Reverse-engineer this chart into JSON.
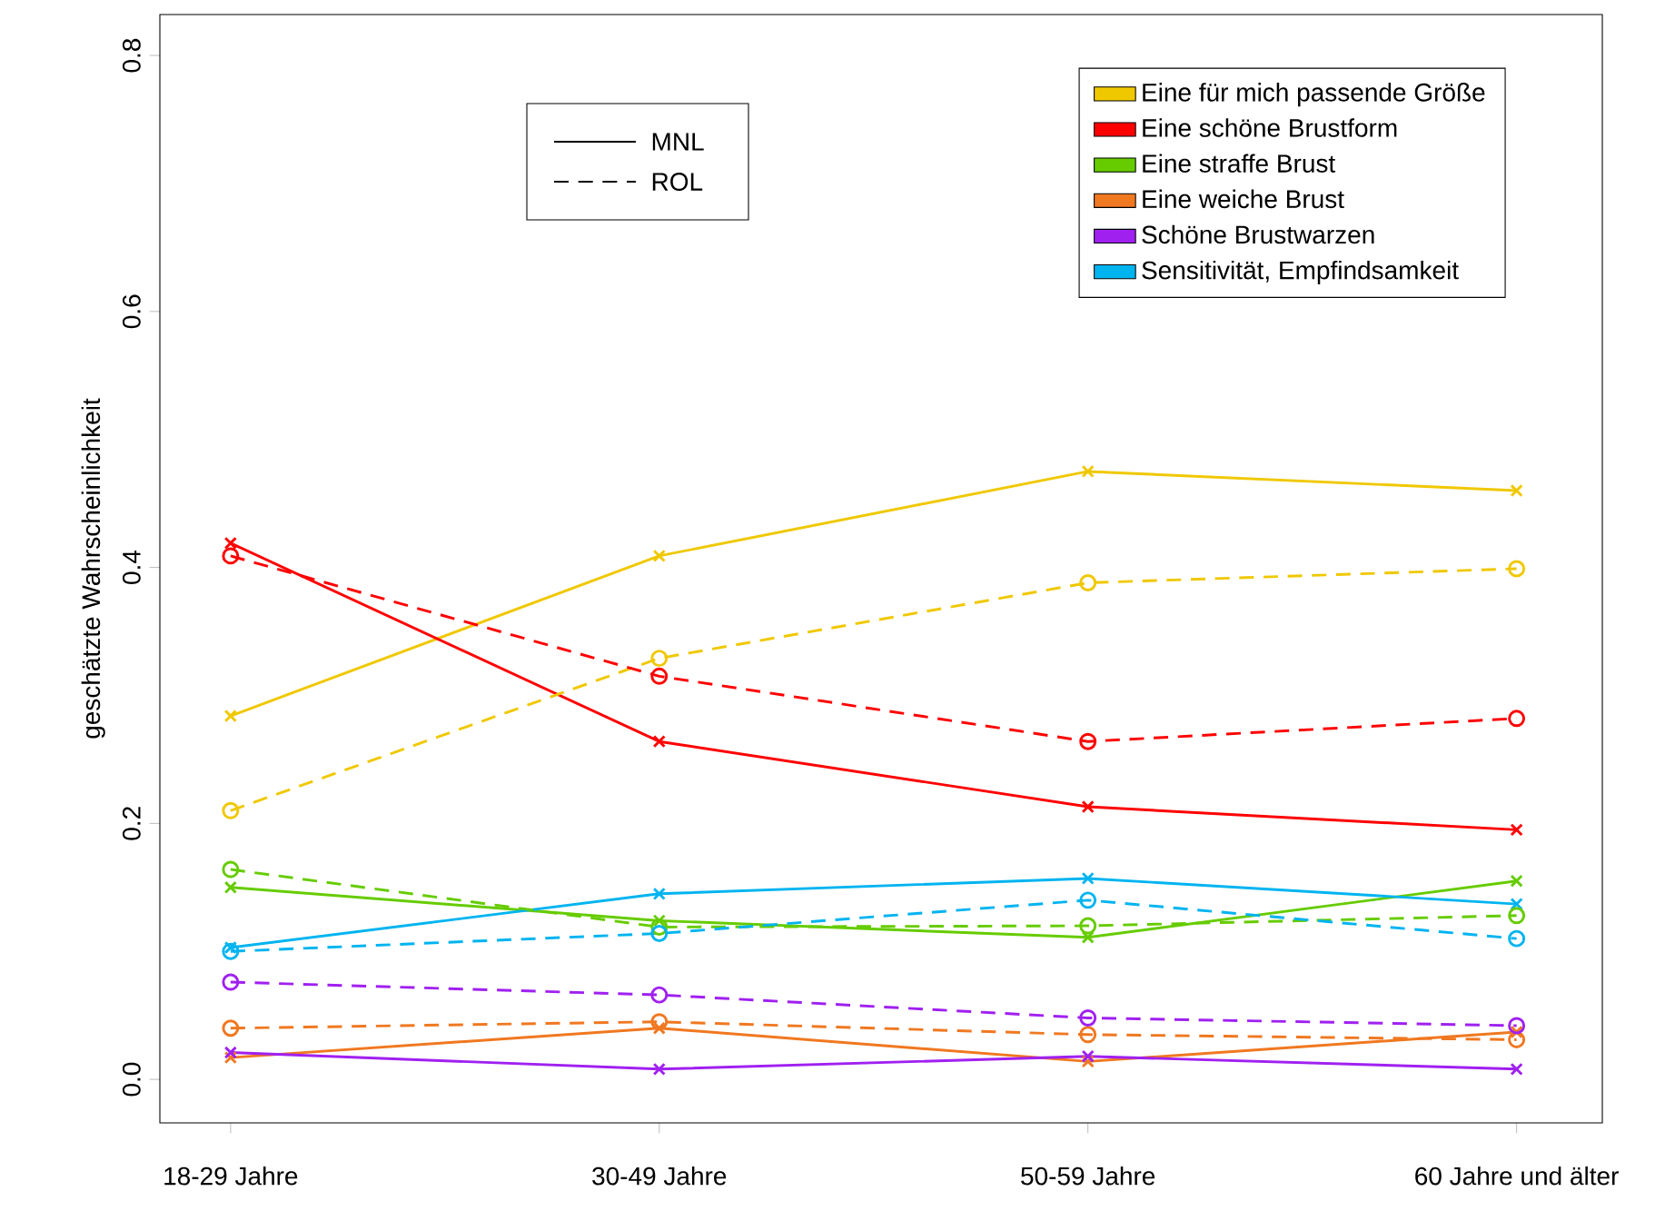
{
  "chart_data": {
    "type": "line",
    "ylabel": "geschätzte Wahrscheinlichkeit",
    "categories": [
      "18-29 Jahre",
      "30-49 Jahre",
      "50-59 Jahre",
      "60 Jahre und älter"
    ],
    "ylim": [
      -0.034,
      0.832
    ],
    "yticks": [
      {
        "value": 0,
        "label": "0.0"
      },
      0.2,
      0.4,
      0.6,
      0.8
    ],
    "legend": "top right",
    "annotations": [
      "MNL",
      "ROL"
    ],
    "series": [
      {
        "name": "Eine für mich passende Größe",
        "color": "#f0c800",
        "values": [
          0.284,
          0.409,
          0.475,
          0.46
        ],
        "line_style": "solid",
        "marker": "cross"
      },
      {
        "name": "Eine schöne Brustform",
        "color": "#ff0000",
        "values": [
          0.419,
          0.264,
          0.213,
          0.195
        ],
        "line_style": "solid",
        "marker": "cross"
      },
      {
        "name": "Eine straffe Brust",
        "color": "#66cc00",
        "values": [
          0.15,
          0.124,
          0.111,
          0.155
        ],
        "line_style": "solid",
        "marker": "cross"
      },
      {
        "name": "Eine weiche Brust",
        "color": "#f07820",
        "values": [
          0.017,
          0.04,
          0.014,
          0.037
        ],
        "line_style": "solid",
        "marker": "cross"
      },
      {
        "name": "Schöne Brustwarzen",
        "color": "#a020f0",
        "values": [
          0.021,
          0.008,
          0.018,
          0.008
        ],
        "line_style": "solid",
        "marker": "cross"
      },
      {
        "name": "Sensitivität, Empfindsamkeit",
        "color": "#00b4f0",
        "values": [
          0.103,
          0.145,
          0.157,
          0.137
        ],
        "line_style": "solid",
        "marker": "cross"
      },
      {
        "color": "#f0c800",
        "values": [
          0.21,
          0.329,
          0.388,
          0.399
        ],
        "line_style": "dashed",
        "marker": "circle"
      },
      {
        "color": "#ff0000",
        "values": [
          0.409,
          0.315,
          0.264,
          0.282
        ],
        "line_style": "dashed",
        "marker": "circle"
      },
      {
        "color": "#66cc00",
        "values": [
          0.164,
          0.119,
          0.12,
          0.128
        ],
        "line_style": "dashed",
        "marker": "circle"
      },
      {
        "color": "#f07820",
        "values": [
          0.04,
          0.045,
          0.035,
          0.031
        ],
        "line_style": "dashed",
        "marker": "circle"
      },
      {
        "color": "#a020f0",
        "values": [
          0.076,
          0.066,
          0.048,
          0.042
        ],
        "line_style": "dashed",
        "marker": "circle"
      },
      {
        "color": "#00b4f0",
        "values": [
          0.1,
          0.114,
          0.14,
          0.11
        ],
        "line_style": "dashed",
        "marker": "circle"
      }
    ]
  }
}
